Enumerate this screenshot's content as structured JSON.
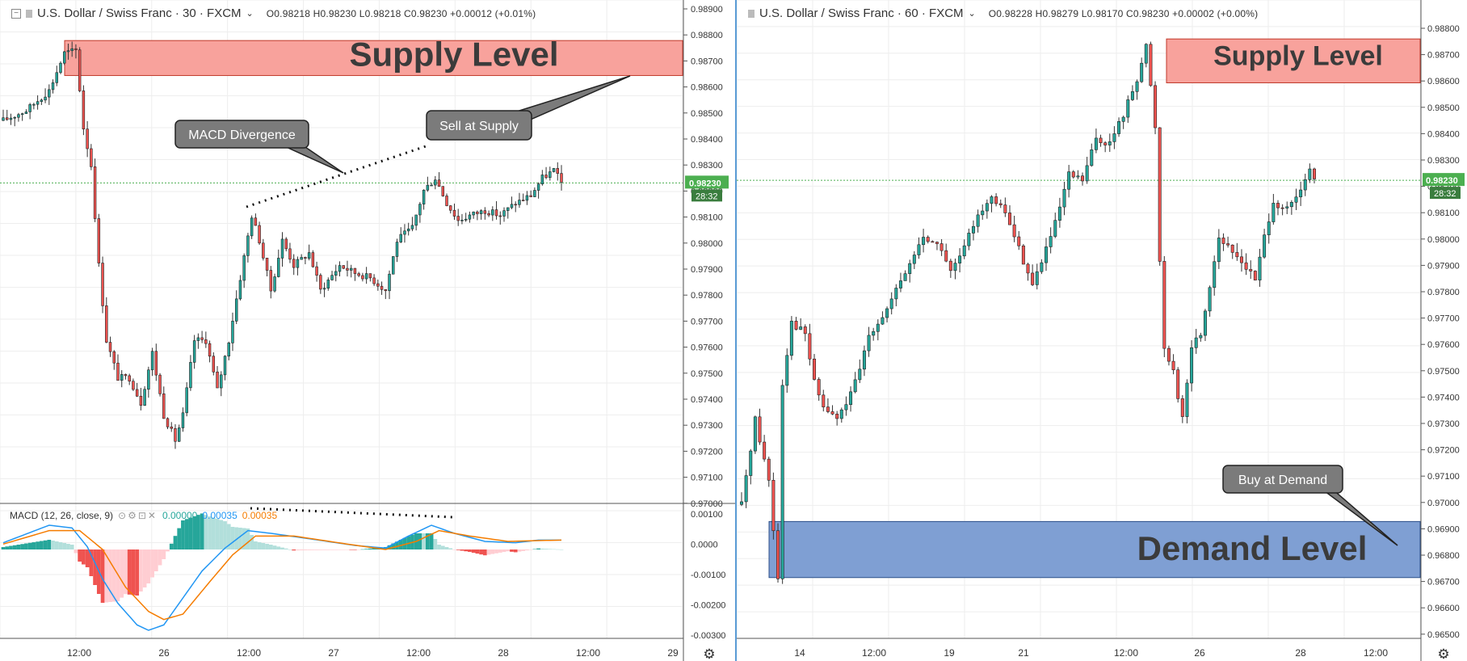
{
  "colors": {
    "up": "#26a69a",
    "down": "#ef5350",
    "wick": "#333333",
    "supply_fill": "#f8a29c",
    "demand_fill": "#7f9fd3",
    "grid": "#eeeeee",
    "price_line": "#4caf50",
    "macd_line": "#2196f3",
    "signal_line": "#f57c00",
    "hist_up_strong": "#26a69a",
    "hist_up_weak": "#b2dfdb",
    "hist_down_strong": "#ef5350",
    "hist_down_weak": "#ffcdd2",
    "price_label_bg": "#4caf50",
    "callout_bg": "#7b7b7b"
  },
  "left": {
    "legend": {
      "symbol": "U.S. Dollar / Swiss Franc · 30 · FXCM",
      "ohlc": "O0.98218 H0.98230 L0.98218 C0.98230 +0.00012 (+0.01%)"
    },
    "price_axis": [
      "0.98900",
      "0.98800",
      "0.98700",
      "0.98600",
      "0.98500",
      "0.98400",
      "0.98300",
      "0.98200",
      "0.98100",
      "0.98000",
      "0.97900",
      "0.97800",
      "0.97700",
      "0.97600",
      "0.97500",
      "0.97400",
      "0.97300",
      "0.97200",
      "0.97100",
      "0.97000"
    ],
    "current_price": "0.98230",
    "countdown": "28:32",
    "time_axis": [
      "12:00",
      "26",
      "12:00",
      "27",
      "12:00",
      "28",
      "12:00",
      "29"
    ],
    "supply_label": "Supply Level",
    "callouts": {
      "divergence": "MACD Divergence",
      "sell": "Sell at Supply"
    },
    "macd": {
      "title": "MACD (12, 26, close, 9)",
      "hist_value": "0.00000",
      "macd_value": "0.00035",
      "signal_value": "0.00035",
      "axis": [
        "0.00100",
        "0.0000",
        "-0.00100",
        "-0.00200",
        "-0.00300"
      ]
    }
  },
  "right": {
    "legend": {
      "symbol": "U.S. Dollar / Swiss Franc · 60 · FXCM",
      "ohlc": "O0.98228 H0.98279 L0.98170 C0.98230 +0.00002 (+0.00%)"
    },
    "price_axis": [
      "0.98800",
      "0.98700",
      "0.98600",
      "0.98500",
      "0.98400",
      "0.98300",
      "0.98200",
      "0.98100",
      "0.98000",
      "0.97900",
      "0.97800",
      "0.97700",
      "0.97600",
      "0.97500",
      "0.97400",
      "0.97300",
      "0.97200",
      "0.97100",
      "0.97000",
      "0.96900",
      "0.96800",
      "0.96700",
      "0.96600",
      "0.96500"
    ],
    "current_price": "0.98230",
    "countdown": "28:32",
    "time_axis": [
      "14",
      "12:00",
      "19",
      "21",
      "12:00",
      "26",
      "28",
      "12:00"
    ],
    "supply_label": "Supply Level",
    "demand_label": "Demand Level",
    "callouts": {
      "buy": "Buy at Demand"
    }
  },
  "chart_data": [
    {
      "type": "candlestick",
      "symbol": "U.S. Dollar / Swiss Franc",
      "timeframe": "30",
      "ylim": [
        0.9695,
        0.9893
      ],
      "supply_zone": [
        0.9866,
        0.988
      ],
      "x_ticks": [
        "12:00",
        "26",
        "12:00",
        "27",
        "12:00",
        "28",
        "12:00",
        "29"
      ],
      "path": [
        [
          0,
          0.9848
        ],
        [
          6,
          0.9852
        ],
        [
          12,
          0.986
        ],
        [
          16,
          0.9875
        ],
        [
          19,
          0.9876
        ],
        [
          21,
          0.9845
        ],
        [
          23,
          0.983
        ],
        [
          25,
          0.979
        ],
        [
          27,
          0.976
        ],
        [
          30,
          0.9745
        ],
        [
          33,
          0.9745
        ],
        [
          36,
          0.9735
        ],
        [
          39,
          0.9755
        ],
        [
          42,
          0.973
        ],
        [
          45,
          0.972
        ],
        [
          47,
          0.973
        ],
        [
          50,
          0.976
        ],
        [
          53,
          0.976
        ],
        [
          56,
          0.974
        ],
        [
          59,
          0.976
        ],
        [
          62,
          0.9785
        ],
        [
          65,
          0.981
        ],
        [
          67,
          0.98
        ],
        [
          70,
          0.978
        ],
        [
          73,
          0.98
        ],
        [
          76,
          0.979
        ],
        [
          80,
          0.9795
        ],
        [
          83,
          0.978
        ],
        [
          88,
          0.979
        ],
        [
          92,
          0.9787
        ],
        [
          96,
          0.9785
        ],
        [
          100,
          0.978
        ],
        [
          103,
          0.98
        ],
        [
          107,
          0.9805
        ],
        [
          110,
          0.982
        ],
        [
          113,
          0.9825
        ],
        [
          116,
          0.9815
        ],
        [
          119,
          0.9808
        ],
        [
          122,
          0.981
        ],
        [
          126,
          0.9812
        ],
        [
          130,
          0.981
        ],
        [
          134,
          0.9815
        ],
        [
          138,
          0.9818
        ],
        [
          141,
          0.9825
        ],
        [
          144,
          0.9828
        ],
        [
          146,
          0.9823
        ]
      ],
      "macd": {
        "name": "MACD (12, 26, close, 9)",
        "ylim": [
          -0.0033,
          0.0012
        ],
        "path": [
          [
            0,
            0.00025
          ],
          [
            12,
            0.0009
          ],
          [
            18,
            0.0008
          ],
          [
            22,
            0.0001
          ],
          [
            26,
            -0.0011
          ],
          [
            30,
            -0.002
          ],
          [
            35,
            -0.0028
          ],
          [
            38,
            -0.003
          ],
          [
            42,
            -0.0028
          ],
          [
            47,
            -0.0018
          ],
          [
            52,
            -0.0008
          ],
          [
            58,
            5e-05
          ],
          [
            64,
            0.0007
          ],
          [
            70,
            0.0006
          ],
          [
            80,
            0.0004
          ],
          [
            92,
            0.00015
          ],
          [
            100,
            5e-05
          ],
          [
            106,
            0.0005
          ],
          [
            112,
            0.0009
          ],
          [
            118,
            0.0006
          ],
          [
            126,
            0.0003
          ],
          [
            134,
            0.00025
          ],
          [
            140,
            0.00035
          ],
          [
            146,
            0.00035
          ]
        ],
        "signal_path": [
          [
            0,
            0.0002
          ],
          [
            12,
            0.0007
          ],
          [
            20,
            0.0007
          ],
          [
            26,
            0.0
          ],
          [
            32,
            -0.0014
          ],
          [
            38,
            -0.0023
          ],
          [
            42,
            -0.0026
          ],
          [
            47,
            -0.0024
          ],
          [
            54,
            -0.0012
          ],
          [
            60,
            -0.0002
          ],
          [
            66,
            0.0005
          ],
          [
            76,
            0.0005
          ],
          [
            90,
            0.0002
          ],
          [
            100,
            0.0
          ],
          [
            108,
            0.0003
          ],
          [
            114,
            0.0007
          ],
          [
            122,
            0.0005
          ],
          [
            132,
            0.0003
          ],
          [
            146,
            0.00035
          ]
        ]
      }
    },
    {
      "type": "candlestick",
      "symbol": "U.S. Dollar / Swiss Franc",
      "timeframe": "60",
      "ylim": [
        0.9645,
        0.9893
      ],
      "supply_zone": [
        0.9863,
        0.9881
      ],
      "demand_zone": [
        0.966,
        0.9683
      ],
      "x_ticks": [
        "14",
        "12:00",
        "19",
        "21",
        "12:00",
        "26",
        "28",
        "12:00"
      ],
      "path": [
        [
          0,
          0.969
        ],
        [
          3,
          0.9725
        ],
        [
          6,
          0.97
        ],
        [
          8,
          0.966
        ],
        [
          9,
          0.974
        ],
        [
          11,
          0.9765
        ],
        [
          14,
          0.976
        ],
        [
          16,
          0.974
        ],
        [
          18,
          0.973
        ],
        [
          21,
          0.9725
        ],
        [
          24,
          0.9735
        ],
        [
          26,
          0.9745
        ],
        [
          28,
          0.976
        ],
        [
          32,
          0.977
        ],
        [
          36,
          0.9785
        ],
        [
          40,
          0.98
        ],
        [
          44,
          0.9795
        ],
        [
          46,
          0.9785
        ],
        [
          49,
          0.9795
        ],
        [
          52,
          0.981
        ],
        [
          55,
          0.9815
        ],
        [
          58,
          0.981
        ],
        [
          61,
          0.9795
        ],
        [
          64,
          0.978
        ],
        [
          66,
          0.979
        ],
        [
          69,
          0.9805
        ],
        [
          72,
          0.9825
        ],
        [
          75,
          0.9823
        ],
        [
          78,
          0.984
        ],
        [
          81,
          0.9838
        ],
        [
          84,
          0.985
        ],
        [
          87,
          0.9865
        ],
        [
          89,
          0.9878
        ],
        [
          91,
          0.9845
        ],
        [
          92,
          0.979
        ],
        [
          93,
          0.9755
        ],
        [
          95,
          0.9745
        ],
        [
          97,
          0.9725
        ],
        [
          99,
          0.9755
        ],
        [
          101,
          0.976
        ],
        [
          103,
          0.978
        ],
        [
          105,
          0.98
        ],
        [
          107,
          0.9795
        ],
        [
          110,
          0.979
        ],
        [
          113,
          0.9782
        ],
        [
          115,
          0.98
        ],
        [
          117,
          0.9815
        ],
        [
          119,
          0.981
        ],
        [
          121,
          0.9813
        ],
        [
          123,
          0.9818
        ],
        [
          125,
          0.9828
        ],
        [
          126,
          0.9823
        ]
      ]
    }
  ]
}
